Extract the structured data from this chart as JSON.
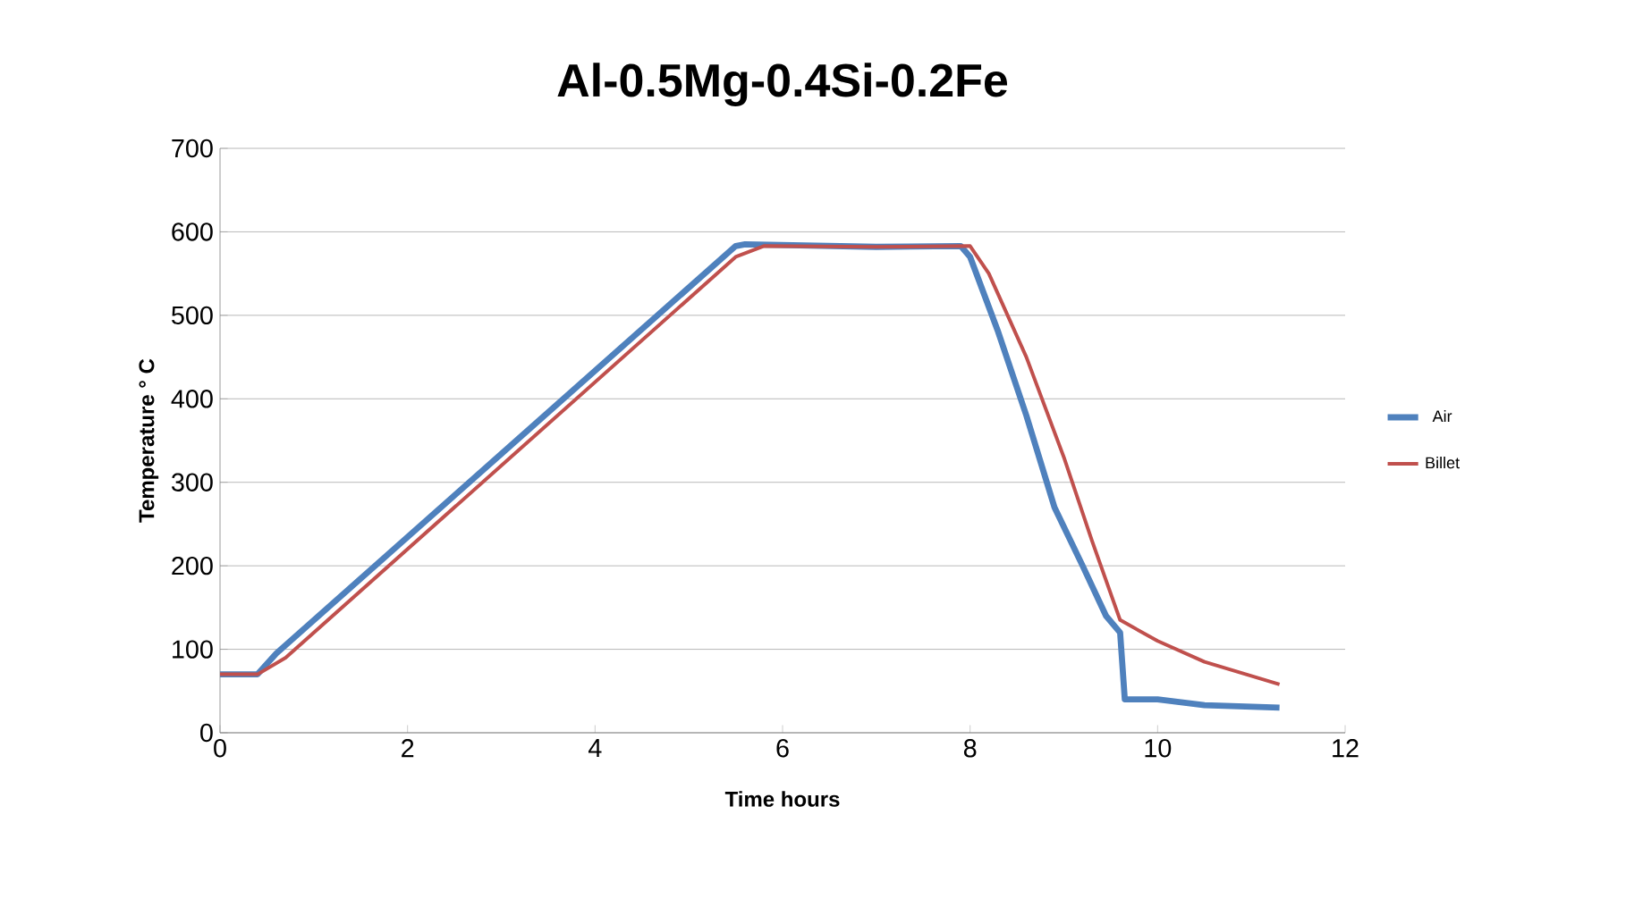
{
  "chart_data": {
    "type": "line",
    "title": "Al-0.5Mg-0.4Si-0.2Fe",
    "xlabel": "Time hours",
    "ylabel": "Temperature  ° C",
    "xlim": [
      0,
      12
    ],
    "xticks": [
      0,
      2,
      4,
      6,
      8,
      10,
      12
    ],
    "ylim": [
      0,
      700
    ],
    "yticks": [
      0,
      100,
      200,
      300,
      400,
      500,
      600,
      700
    ],
    "grid": "y",
    "legend": "right",
    "series": [
      {
        "name": "Air",
        "color": "#4f81bd",
        "x": [
          0,
          0.4,
          0.6,
          5.5,
          5.6,
          7,
          7.9,
          8.0,
          8.3,
          8.6,
          8.9,
          9.2,
          9.45,
          9.6,
          9.65,
          10,
          10.5,
          11.3
        ],
        "values": [
          70,
          70,
          95,
          583,
          585,
          582,
          583,
          570,
          480,
          380,
          270,
          200,
          140,
          120,
          40,
          40,
          33,
          30
        ]
      },
      {
        "name": "Billet",
        "color": "#c0504d",
        "x": [
          0,
          0.4,
          0.7,
          5.5,
          5.8,
          7,
          8,
          8.2,
          8.6,
          9,
          9.3,
          9.6,
          10,
          10.5,
          11.3
        ],
        "values": [
          70,
          70,
          90,
          570,
          583,
          582,
          583,
          550,
          450,
          330,
          230,
          135,
          110,
          85,
          58
        ]
      }
    ]
  }
}
